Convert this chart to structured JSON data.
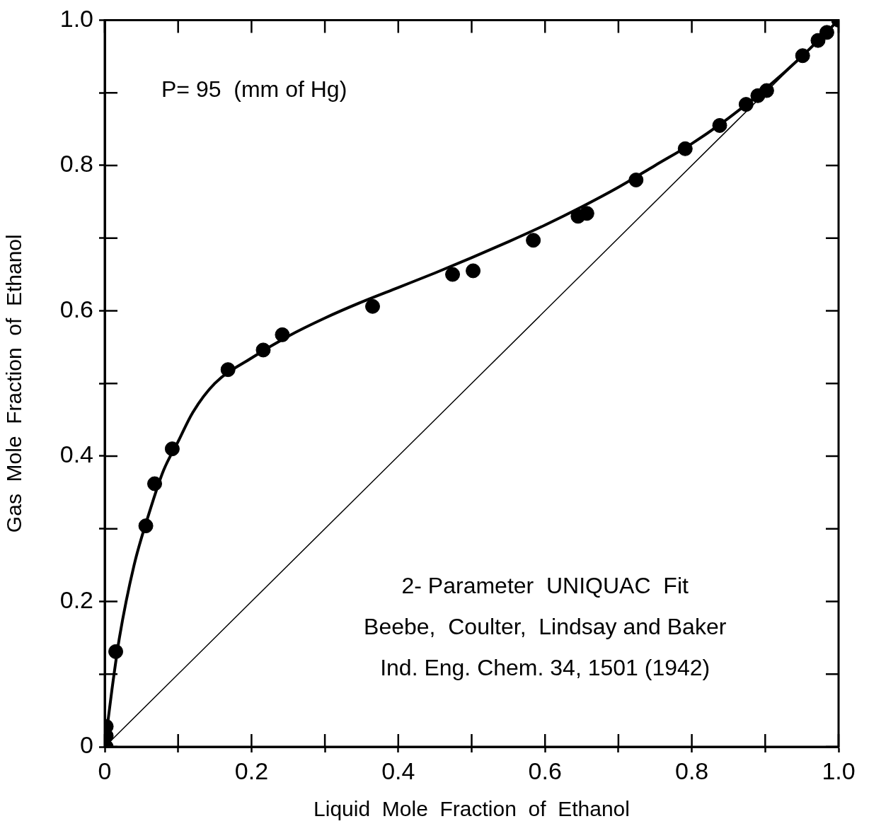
{
  "chart_data": {
    "type": "scatter",
    "xlabel": "Liquid  Mole  Fraction  of  Ethanol",
    "ylabel": "Gas  Mole  Fraction  of  Ethanol",
    "annotations": [
      "P= 95  (mm of Hg)",
      "2- Parameter  UNIQUAC  Fit",
      "Beebe,  Coulter,  Lindsay and Baker",
      "Ind. Eng. Chem. 34, 1501 (1942)"
    ],
    "xlim": [
      0,
      1
    ],
    "ylim": [
      0,
      1
    ],
    "xticks": [
      0,
      {
        "value": 0.1,
        "label": null
      },
      0.2,
      {
        "value": 0.3,
        "label": null
      },
      0.4,
      {
        "value": 0.5,
        "label": null
      },
      0.6,
      {
        "value": 0.7,
        "label": null
      },
      0.8,
      {
        "value": 0.9,
        "label": null
      },
      {
        "value": 1,
        "label": "1.0"
      }
    ],
    "yticks": [
      0,
      {
        "value": 0.1,
        "label": null
      },
      0.2,
      {
        "value": 0.3,
        "label": null
      },
      0.4,
      {
        "value": 0.5,
        "label": null
      },
      0.6,
      {
        "value": 0.7,
        "label": null
      },
      0.8,
      {
        "value": 0.9,
        "label": null
      },
      {
        "value": 1,
        "label": "1.0"
      }
    ],
    "grid": false,
    "legend": false,
    "series": [
      {
        "type": "scatter",
        "color": "#000000",
        "marker": "circle",
        "x": [
          0.002,
          0.002,
          0.002,
          0.015,
          0.056,
          0.068,
          0.092,
          0.168,
          0.216,
          0.242,
          0.365,
          0.474,
          0.502,
          0.584,
          0.645,
          0.657,
          0.724,
          0.791,
          0.838,
          0.874,
          0.89,
          0.902,
          0.951,
          0.972,
          0.984,
          1.0
        ],
        "values": [
          0.0,
          0.015,
          0.028,
          0.131,
          0.304,
          0.362,
          0.41,
          0.519,
          0.546,
          0.567,
          0.606,
          0.65,
          0.655,
          0.697,
          0.73,
          0.734,
          0.78,
          0.823,
          0.855,
          0.884,
          0.896,
          0.903,
          0.951,
          0.972,
          0.983,
          1.0
        ]
      },
      {
        "type": "line",
        "color": "#000000",
        "marker": "none",
        "line_style": "solid",
        "x": [
          0,
          0.01,
          0.02,
          0.04,
          0.06,
          0.08,
          0.1,
          0.12,
          0.15,
          0.2,
          0.25,
          0.3,
          0.35,
          0.4,
          0.45,
          0.5,
          0.55,
          0.6,
          0.65,
          0.7,
          0.75,
          0.8,
          0.85,
          0.9,
          0.95,
          1.0
        ],
        "values": [
          0,
          0.08,
          0.15,
          0.25,
          0.32,
          0.38,
          0.42,
          0.46,
          0.5,
          0.535,
          0.565,
          0.59,
          0.612,
          0.632,
          0.652,
          0.673,
          0.695,
          0.718,
          0.743,
          0.77,
          0.8,
          0.83,
          0.865,
          0.905,
          0.95,
          1.0
        ]
      },
      {
        "type": "line",
        "color": "#000000",
        "marker": "none",
        "line_style": "solid",
        "x": [
          0,
          1
        ],
        "values": [
          0,
          1
        ]
      }
    ]
  }
}
